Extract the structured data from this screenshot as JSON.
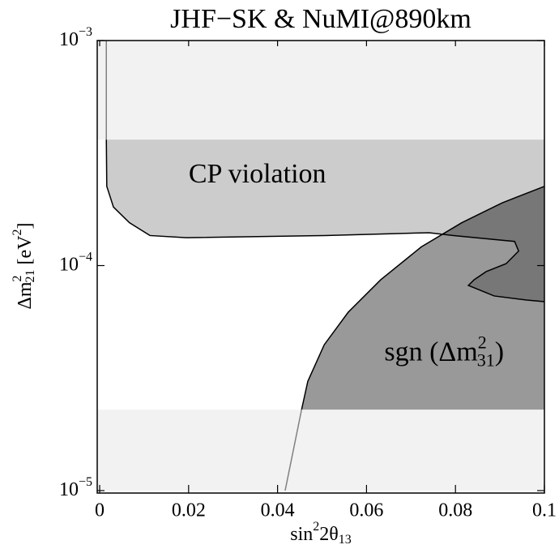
{
  "chart_data": {
    "type": "region",
    "title": "JHF−SK & NuMI@890km",
    "xlabel": {
      "base": "sin",
      "sup": "2",
      "mid": "2θ",
      "sub": "13"
    },
    "ylabel": {
      "base": "Δm",
      "sup": "2",
      "sub": "21",
      "unit": " [eV",
      "unit_sup": "2",
      "end": "]"
    },
    "xlim": [
      -0.00055,
      0.1
    ],
    "ylim": [
      1e-05,
      0.001
    ],
    "log_y": true,
    "xticks": [
      0,
      0.02,
      0.04,
      0.06,
      0.08,
      0.1
    ],
    "yticks": [
      {
        "value": 1e-05,
        "label": "10",
        "exponent": "−5"
      },
      {
        "value": 0.0001,
        "label": "10",
        "exponent": "−4"
      },
      {
        "value": 0.001,
        "label": "10",
        "exponent": "−3"
      }
    ],
    "bands": [
      {
        "y": [
          0.000363,
          0.001
        ],
        "color": "#f2f2f2"
      },
      {
        "y": [
          1e-05,
          2.29e-05
        ],
        "color": "#f2f2f2"
      }
    ],
    "regions": [
      {
        "color": "#cccccc",
        "x": [
          0.0015,
          0.0016,
          0.0031,
          0.0067,
          0.0113,
          0.0195,
          0.0505,
          0.0741,
          0.0796,
          0.0933,
          0.0942,
          0.0914,
          0.0869,
          0.0842,
          0.0829,
          0.0887,
          0.096,
          0.1,
          0.1
        ],
        "y": [
          0.000363,
          0.000225,
          0.000182,
          0.000155,
          0.000136,
          0.000133,
          0.000136,
          0.00014,
          0.000136,
          0.000128,
          0.000116,
          0.000102,
          9.4e-05,
          8.65e-05,
          8.16e-05,
          7.33e-05,
          7.03e-05,
          6.91e-05,
          0.000363
        ]
      },
      {
        "color": "#999999",
        "overlap_color": "#777777",
        "x": [
          0.0454,
          0.0468,
          0.0505,
          0.0559,
          0.0632,
          0.0723,
          0.0814,
          0.0905,
          0.1,
          0.1
        ],
        "y": [
          2.29e-05,
          3.06e-05,
          4.45e-05,
          6.21e-05,
          8.65e-05,
          0.000121,
          0.000155,
          0.00019,
          0.000225,
          2.29e-05
        ]
      }
    ],
    "extensions": [
      {
        "x": [
          0.0015,
          0.0015
        ],
        "y": [
          0.001,
          0.000363
        ],
        "color": "#808080"
      },
      {
        "x": [
          0.0417,
          0.0454
        ],
        "y": [
          1e-05,
          2.29e-05
        ],
        "color": "#808080"
      }
    ],
    "annotations": [
      {
        "text": "CP violation",
        "x": 0.02,
        "y": 0.00025
      },
      {
        "text": "sgn (Δm",
        "sup": "2",
        "sub": "31",
        "end": ")",
        "x": 0.064,
        "y": 4.05e-05
      }
    ]
  }
}
